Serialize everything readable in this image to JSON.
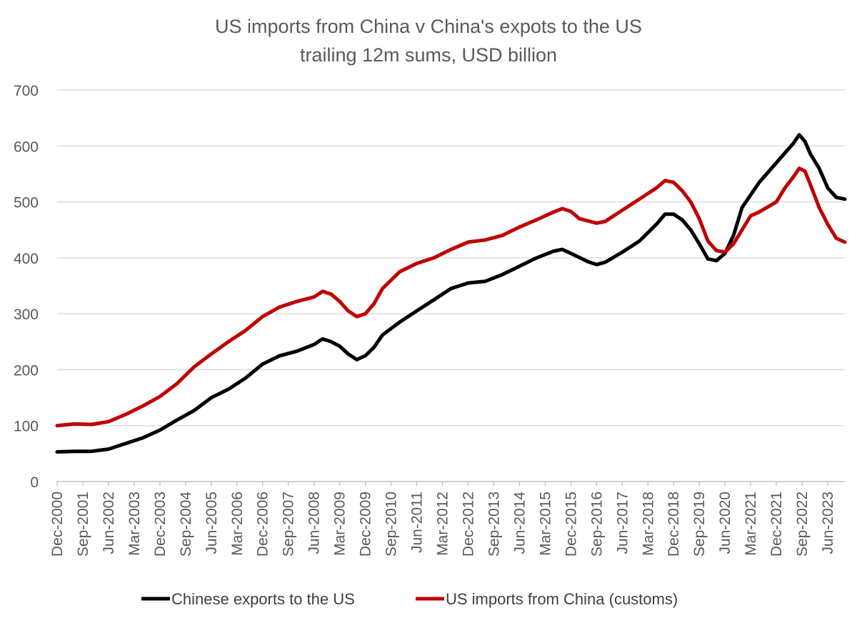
{
  "chart_data": {
    "type": "line",
    "title": "US imports from China v China's expots to the US",
    "subtitle": "trailing 12m sums, USD billion",
    "xlabel": "",
    "ylabel": "",
    "ylim": [
      0,
      700
    ],
    "yticks": [
      0,
      100,
      200,
      300,
      400,
      500,
      600,
      700
    ],
    "grid": true,
    "legend_position": "bottom",
    "x_start": "Dec-2000",
    "x_end": "Dec-2023",
    "x_tick_labels": [
      "Dec-2000",
      "Sep-2001",
      "Jun-2002",
      "Mar-2003",
      "Dec-2003",
      "Sep-2004",
      "Jun-2005",
      "Mar-2006",
      "Dec-2006",
      "Sep-2007",
      "Jun-2008",
      "Mar-2009",
      "Dec-2009",
      "Sep-2010",
      "Jun-2011",
      "Mar-2012",
      "Dec-2012",
      "Sep-2013",
      "Jun-2014",
      "Mar-2015",
      "Dec-2015",
      "Sep-2016",
      "Jun-2017",
      "Mar-2018",
      "Dec-2018",
      "Sep-2019",
      "Jun-2020",
      "Mar-2021",
      "Dec-2021",
      "Sep-2022",
      "Jun-2023"
    ],
    "series": [
      {
        "name": "Chinese exports to the US",
        "color": "#000000",
        "points": [
          [
            "Dec-2000",
            53
          ],
          [
            "Jun-2001",
            54
          ],
          [
            "Dec-2001",
            54
          ],
          [
            "Jun-2002",
            58
          ],
          [
            "Dec-2002",
            68
          ],
          [
            "Jun-2003",
            78
          ],
          [
            "Dec-2003",
            92
          ],
          [
            "Jun-2004",
            110
          ],
          [
            "Dec-2004",
            127
          ],
          [
            "Jun-2005",
            150
          ],
          [
            "Dec-2005",
            165
          ],
          [
            "Jun-2006",
            185
          ],
          [
            "Dec-2006",
            210
          ],
          [
            "Jun-2007",
            225
          ],
          [
            "Dec-2007",
            233
          ],
          [
            "Jun-2008",
            245
          ],
          [
            "Sep-2008",
            255
          ],
          [
            "Dec-2008",
            250
          ],
          [
            "Mar-2009",
            242
          ],
          [
            "Jun-2009",
            228
          ],
          [
            "Sep-2009",
            218
          ],
          [
            "Dec-2009",
            225
          ],
          [
            "Mar-2010",
            240
          ],
          [
            "Jun-2010",
            262
          ],
          [
            "Dec-2010",
            285
          ],
          [
            "Jun-2011",
            305
          ],
          [
            "Dec-2011",
            325
          ],
          [
            "Jun-2012",
            345
          ],
          [
            "Dec-2012",
            355
          ],
          [
            "Jun-2013",
            358
          ],
          [
            "Dec-2013",
            370
          ],
          [
            "Jun-2014",
            385
          ],
          [
            "Dec-2014",
            400
          ],
          [
            "Jun-2015",
            412
          ],
          [
            "Sep-2015",
            415
          ],
          [
            "Dec-2015",
            408
          ],
          [
            "Jun-2016",
            393
          ],
          [
            "Sep-2016",
            388
          ],
          [
            "Dec-2016",
            392
          ],
          [
            "Jun-2017",
            410
          ],
          [
            "Dec-2017",
            430
          ],
          [
            "Jun-2018",
            460
          ],
          [
            "Sep-2018",
            478
          ],
          [
            "Dec-2018",
            478
          ],
          [
            "Mar-2019",
            468
          ],
          [
            "Jun-2019",
            450
          ],
          [
            "Sep-2019",
            425
          ],
          [
            "Dec-2019",
            398
          ],
          [
            "Mar-2020",
            395
          ],
          [
            "Jun-2020",
            408
          ],
          [
            "Sep-2020",
            440
          ],
          [
            "Dec-2020",
            490
          ],
          [
            "Jun-2021",
            535
          ],
          [
            "Dec-2021",
            570
          ],
          [
            "Jun-2022",
            605
          ],
          [
            "Aug-2022",
            620
          ],
          [
            "Oct-2022",
            608
          ],
          [
            "Dec-2022",
            585
          ],
          [
            "Mar-2023",
            560
          ],
          [
            "Jun-2023",
            525
          ],
          [
            "Sep-2023",
            508
          ],
          [
            "Dec-2023",
            505
          ]
        ]
      },
      {
        "name": "US imports from China (customs)",
        "color": "#c00000",
        "points": [
          [
            "Dec-2000",
            100
          ],
          [
            "Jun-2001",
            103
          ],
          [
            "Dec-2001",
            102
          ],
          [
            "Jun-2002",
            107
          ],
          [
            "Dec-2002",
            120
          ],
          [
            "Jun-2003",
            135
          ],
          [
            "Dec-2003",
            152
          ],
          [
            "Jun-2004",
            175
          ],
          [
            "Dec-2004",
            205
          ],
          [
            "Jun-2005",
            228
          ],
          [
            "Dec-2005",
            250
          ],
          [
            "Jun-2006",
            270
          ],
          [
            "Dec-2006",
            295
          ],
          [
            "Jun-2007",
            312
          ],
          [
            "Dec-2007",
            322
          ],
          [
            "Jun-2008",
            330
          ],
          [
            "Sep-2008",
            340
          ],
          [
            "Dec-2008",
            335
          ],
          [
            "Mar-2009",
            322
          ],
          [
            "Jun-2009",
            305
          ],
          [
            "Sep-2009",
            295
          ],
          [
            "Dec-2009",
            300
          ],
          [
            "Mar-2010",
            318
          ],
          [
            "Jun-2010",
            345
          ],
          [
            "Dec-2010",
            375
          ],
          [
            "Jun-2011",
            390
          ],
          [
            "Dec-2011",
            400
          ],
          [
            "Jun-2012",
            415
          ],
          [
            "Dec-2012",
            428
          ],
          [
            "Jun-2013",
            432
          ],
          [
            "Dec-2013",
            440
          ],
          [
            "Jun-2014",
            455
          ],
          [
            "Dec-2014",
            468
          ],
          [
            "Jun-2015",
            482
          ],
          [
            "Sep-2015",
            488
          ],
          [
            "Dec-2015",
            483
          ],
          [
            "Mar-2016",
            470
          ],
          [
            "Sep-2016",
            462
          ],
          [
            "Dec-2016",
            465
          ],
          [
            "Jun-2017",
            485
          ],
          [
            "Dec-2017",
            505
          ],
          [
            "Jun-2018",
            525
          ],
          [
            "Sep-2018",
            538
          ],
          [
            "Dec-2018",
            535
          ],
          [
            "Mar-2019",
            520
          ],
          [
            "Jun-2019",
            500
          ],
          [
            "Sep-2019",
            470
          ],
          [
            "Dec-2019",
            430
          ],
          [
            "Mar-2020",
            413
          ],
          [
            "Jun-2020",
            410
          ],
          [
            "Sep-2020",
            425
          ],
          [
            "Dec-2020",
            450
          ],
          [
            "Mar-2021",
            475
          ],
          [
            "Jun-2021",
            482
          ],
          [
            "Dec-2021",
            500
          ],
          [
            "Mar-2022",
            525
          ],
          [
            "Jun-2022",
            545
          ],
          [
            "Aug-2022",
            560
          ],
          [
            "Oct-2022",
            555
          ],
          [
            "Dec-2022",
            530
          ],
          [
            "Mar-2023",
            490
          ],
          [
            "Jun-2023",
            460
          ],
          [
            "Sep-2023",
            435
          ],
          [
            "Dec-2023",
            428
          ]
        ]
      }
    ]
  }
}
